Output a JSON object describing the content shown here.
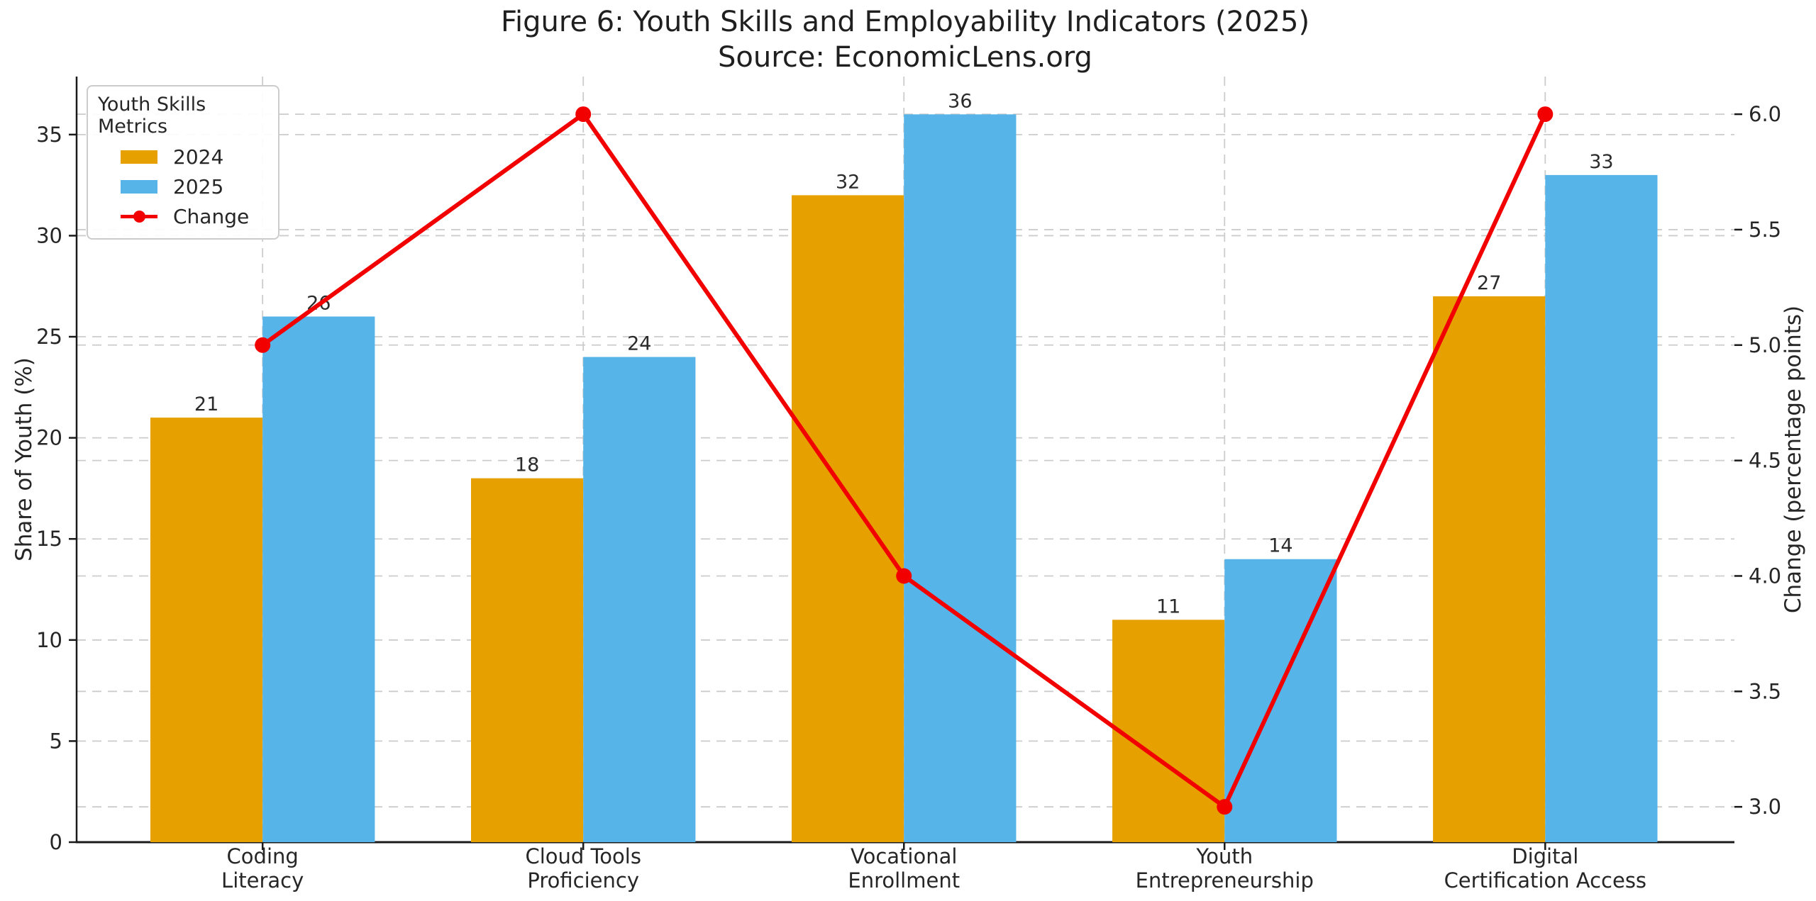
{
  "figure": {
    "title": "Figure 6: Youth Skills and Employability Indicators (2025)",
    "subtitle": "Source: EconomicLens.org"
  },
  "chart_data": {
    "type": "bar",
    "title": "Figure 6: Youth Skills and Employability Indicators (2025)",
    "subtitle": "Source: EconomicLens.org",
    "categories": [
      "Coding Literacy",
      "Cloud Tools Proficiency",
      "Vocational Enrollment",
      "Youth Entrepreneurship",
      "Digital Certification Access"
    ],
    "category_label_lines": [
      [
        "Coding",
        "Literacy"
      ],
      [
        "Cloud Tools",
        "Proficiency"
      ],
      [
        "Vocational",
        "Enrollment"
      ],
      [
        "Youth",
        "Entrepreneurship"
      ],
      [
        "Digital",
        "Certification Access"
      ]
    ],
    "series": [
      {
        "name": "2024",
        "type": "bar",
        "axis": "left",
        "color": "#E6A000",
        "values": [
          21,
          18,
          32,
          11,
          27
        ]
      },
      {
        "name": "2025",
        "type": "bar",
        "axis": "left",
        "color": "#56B4E9",
        "values": [
          26,
          24,
          36,
          14,
          33
        ]
      },
      {
        "name": "Change",
        "type": "line",
        "axis": "right",
        "color": "#F20000",
        "values": [
          5.0,
          6.0,
          4.0,
          3.0,
          6.0
        ]
      }
    ],
    "left_axis": {
      "label": "Share of Youth (%)",
      "ticks": [
        0,
        5,
        10,
        15,
        20,
        25,
        30,
        35
      ],
      "range": [
        0,
        37.87
      ]
    },
    "right_axis": {
      "label": "Change (percentage points)",
      "ticks": [
        3.0,
        3.5,
        4.0,
        4.5,
        5.0,
        5.5,
        6.0
      ],
      "range": [
        2.847,
        6.163
      ]
    },
    "x_range": [
      -0.58,
      4.59
    ],
    "bar_width": 0.35,
    "grid": true,
    "grid_color": "#cccccc",
    "text_color": "#262626",
    "spine_color": "#1a1a1a",
    "legend": {
      "title": "Youth Skills Metrics",
      "position": "upper left"
    }
  }
}
